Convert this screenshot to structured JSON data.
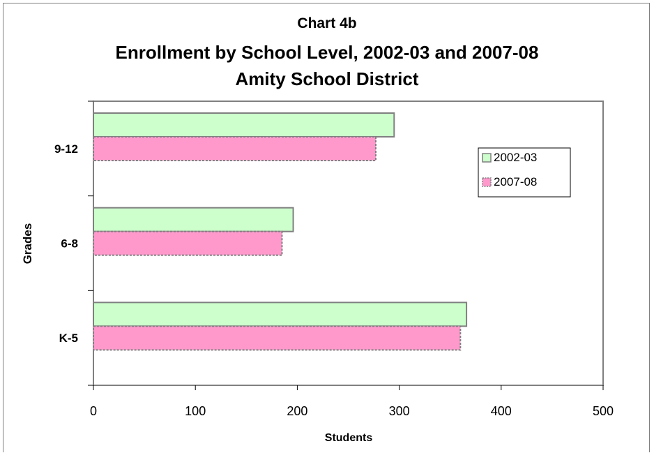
{
  "chart_data": {
    "type": "bar",
    "orientation": "horizontal",
    "title": "Chart 4b",
    "subtitle": "Enrollment by School Level, 2002-03 and 2007-08",
    "subtitle2": "Amity School District",
    "categories": [
      "9-12",
      "6-8",
      "K-5"
    ],
    "series": [
      {
        "name": "2002-03",
        "values": [
          295,
          196,
          366
        ],
        "color": "#ccffcc",
        "stroke": "#808080"
      },
      {
        "name": "2007-08",
        "values": [
          277,
          185,
          360
        ],
        "color": "#ff99cc",
        "stroke": "#808080"
      }
    ],
    "xlabel": "Students",
    "ylabel": "Grades",
    "xlim": [
      0,
      500
    ],
    "xticks": [
      "0",
      "100",
      "200",
      "300",
      "400",
      "500"
    ],
    "grid": false,
    "legend": "right"
  }
}
